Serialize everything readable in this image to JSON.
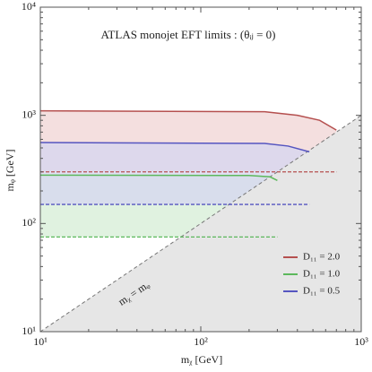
{
  "chart_data": {
    "type": "band",
    "title": "ATLAS monojet EFT limits  : (θᵢⱼ = 0)",
    "x_label": "mᵪ [GeV]",
    "y_label": "mᵩ [GeV]",
    "annotation": "mᵪ = mᵩ",
    "log_x": true,
    "log_y": true,
    "xlim": [
      10,
      1000
    ],
    "ylim": [
      10,
      10000
    ],
    "xticks": [
      {
        "value": 10,
        "label": "10¹"
      },
      {
        "value": 100,
        "label": "10²"
      },
      {
        "value": 1000,
        "label": "10³"
      }
    ],
    "yticks": [
      {
        "value": 10,
        "label": "10¹"
      },
      {
        "value": 100,
        "label": "10²"
      },
      {
        "value": 1000,
        "label": "10³"
      },
      {
        "value": 10000,
        "label": "10⁴"
      }
    ],
    "legend": "lower right",
    "series": [
      {
        "name": "D₁₁ = 2.0",
        "color": "#b5504f",
        "fill": "#f0d4d4",
        "x": [
          10,
          250,
          400,
          550,
          700
        ],
        "values": [
          1100,
          1080,
          1000,
          900,
          730
        ],
        "lower": [
          300,
          300,
          300,
          300,
          300
        ]
      },
      {
        "name": "D₁₁ = 1.0",
        "color": "#5cb85c",
        "fill": "#d5eed5",
        "x": [
          10,
          200,
          270,
          300
        ],
        "values": [
          280,
          278,
          270,
          250
        ],
        "lower": [
          75,
          75,
          75,
          75
        ]
      },
      {
        "name": "D₁₁ = 0.5",
        "color": "#5555c0",
        "fill": "#d6d6f0",
        "x": [
          10,
          250,
          350,
          475
        ],
        "values": [
          560,
          550,
          520,
          460
        ],
        "lower": [
          150,
          150,
          150,
          150
        ]
      }
    ]
  }
}
